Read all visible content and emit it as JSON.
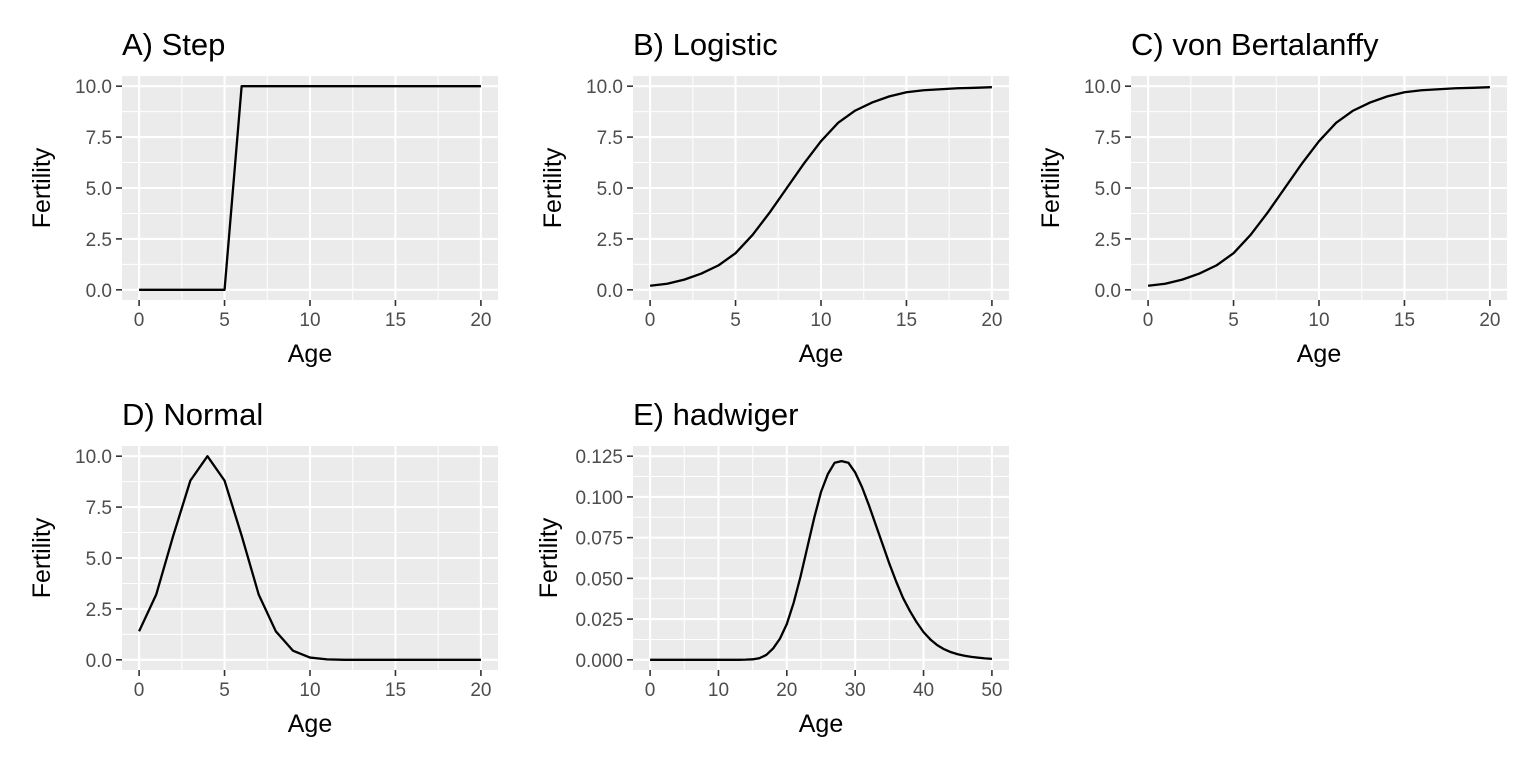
{
  "chart_data": [
    {
      "type": "line",
      "title": "A) Step",
      "xlabel": "Age",
      "ylabel": "Fertility",
      "xlim": [
        0,
        20
      ],
      "ylim": [
        0,
        10
      ],
      "xticks": [
        0,
        5,
        10,
        15,
        20
      ],
      "xtick_labels": [
        "0",
        "5",
        "10",
        "15",
        "20"
      ],
      "yticks": [
        0,
        2.5,
        5,
        7.5,
        10
      ],
      "ytick_labels": [
        "0.0",
        "2.5",
        "5.0",
        "7.5",
        "10.0"
      ],
      "grid": true,
      "x": [
        0,
        1,
        2,
        3,
        4,
        5,
        6,
        7,
        8,
        9,
        10,
        11,
        12,
        13,
        14,
        15,
        16,
        17,
        18,
        19,
        20
      ],
      "y": [
        0,
        0,
        0,
        0,
        0,
        0,
        10,
        10,
        10,
        10,
        10,
        10,
        10,
        10,
        10,
        10,
        10,
        10,
        10,
        10,
        10
      ]
    },
    {
      "type": "line",
      "title": "B) Logistic",
      "xlabel": "Age",
      "ylabel": "Fertility",
      "xlim": [
        0,
        20
      ],
      "ylim": [
        0,
        10
      ],
      "xticks": [
        0,
        5,
        10,
        15,
        20
      ],
      "xtick_labels": [
        "0",
        "5",
        "10",
        "15",
        "20"
      ],
      "yticks": [
        0,
        2.5,
        5,
        7.5,
        10
      ],
      "ytick_labels": [
        "0.0",
        "2.5",
        "5.0",
        "7.5",
        "10.0"
      ],
      "grid": true,
      "x": [
        0,
        1,
        2,
        3,
        4,
        5,
        6,
        7,
        8,
        9,
        10,
        11,
        12,
        13,
        14,
        15,
        16,
        17,
        18,
        19,
        20
      ],
      "y": [
        0.2,
        0.3,
        0.5,
        0.8,
        1.2,
        1.8,
        2.7,
        3.8,
        5.0,
        6.2,
        7.3,
        8.2,
        8.8,
        9.2,
        9.5,
        9.7,
        9.8,
        9.85,
        9.9,
        9.92,
        9.95
      ]
    },
    {
      "type": "line",
      "title": "C) von Bertalanffy",
      "xlabel": "Age",
      "ylabel": "Fertility",
      "xlim": [
        0,
        20
      ],
      "ylim": [
        0,
        10
      ],
      "xticks": [
        0,
        5,
        10,
        15,
        20
      ],
      "xtick_labels": [
        "0",
        "5",
        "10",
        "15",
        "20"
      ],
      "yticks": [
        0,
        2.5,
        5,
        7.5,
        10
      ],
      "ytick_labels": [
        "0.0",
        "2.5",
        "5.0",
        "7.5",
        "10.0"
      ],
      "grid": true,
      "x": [
        0,
        1,
        2,
        3,
        4,
        5,
        6,
        7,
        8,
        9,
        10,
        11,
        12,
        13,
        14,
        15,
        16,
        17,
        18,
        19,
        20
      ],
      "y": [
        0.2,
        0.3,
        0.5,
        0.8,
        1.2,
        1.8,
        2.7,
        3.8,
        5.0,
        6.2,
        7.3,
        8.2,
        8.8,
        9.2,
        9.5,
        9.7,
        9.8,
        9.85,
        9.9,
        9.92,
        9.95
      ]
    },
    {
      "type": "line",
      "title": "D) Normal",
      "xlabel": "Age",
      "ylabel": "Fertility",
      "xlim": [
        0,
        20
      ],
      "ylim": [
        0,
        10
      ],
      "xticks": [
        0,
        5,
        10,
        15,
        20
      ],
      "xtick_labels": [
        "0",
        "5",
        "10",
        "15",
        "20"
      ],
      "yticks": [
        0,
        2.5,
        5,
        7.5,
        10
      ],
      "ytick_labels": [
        "0.0",
        "2.5",
        "5.0",
        "7.5",
        "10.0"
      ],
      "grid": true,
      "x": [
        0,
        1,
        2,
        3,
        4,
        5,
        6,
        7,
        8,
        9,
        10,
        11,
        12,
        13,
        14,
        15,
        16,
        17,
        18,
        19,
        20
      ],
      "y": [
        1.4,
        3.2,
        6.1,
        8.8,
        10.0,
        8.8,
        6.1,
        3.2,
        1.4,
        0.45,
        0.11,
        0.02,
        0.0,
        0.0,
        0.0,
        0.0,
        0.0,
        0.0,
        0.0,
        0.0,
        0.0
      ]
    },
    {
      "type": "line",
      "title": "E) hadwiger",
      "xlabel": "Age",
      "ylabel": "Fertility",
      "xlim": [
        0,
        50
      ],
      "ylim": [
        0,
        0.125
      ],
      "xticks": [
        0,
        10,
        20,
        30,
        40,
        50
      ],
      "xtick_labels": [
        "0",
        "10",
        "20",
        "30",
        "40",
        "50"
      ],
      "yticks": [
        0,
        0.025,
        0.05,
        0.075,
        0.1,
        0.125
      ],
      "ytick_labels": [
        "0.000",
        "0.025",
        "0.050",
        "0.075",
        "0.100",
        "0.125"
      ],
      "grid": true,
      "x": [
        0,
        1,
        2,
        3,
        4,
        5,
        6,
        7,
        8,
        9,
        10,
        11,
        12,
        13,
        14,
        15,
        16,
        17,
        18,
        19,
        20,
        21,
        22,
        23,
        24,
        25,
        26,
        27,
        28,
        29,
        30,
        31,
        32,
        33,
        34,
        35,
        36,
        37,
        38,
        39,
        40,
        41,
        42,
        43,
        44,
        45,
        46,
        47,
        48,
        49,
        50
      ],
      "y": [
        0,
        0,
        0,
        0,
        0,
        0,
        0,
        0,
        0,
        0,
        0,
        0,
        0,
        0,
        0.0001,
        0.0003,
        0.001,
        0.003,
        0.007,
        0.013,
        0.022,
        0.035,
        0.051,
        0.069,
        0.087,
        0.103,
        0.114,
        0.121,
        0.122,
        0.121,
        0.115,
        0.106,
        0.095,
        0.083,
        0.071,
        0.059,
        0.048,
        0.038,
        0.03,
        0.023,
        0.017,
        0.0125,
        0.009,
        0.0065,
        0.0047,
        0.0034,
        0.0025,
        0.0018,
        0.0013,
        0.0009,
        0.0006
      ]
    }
  ]
}
